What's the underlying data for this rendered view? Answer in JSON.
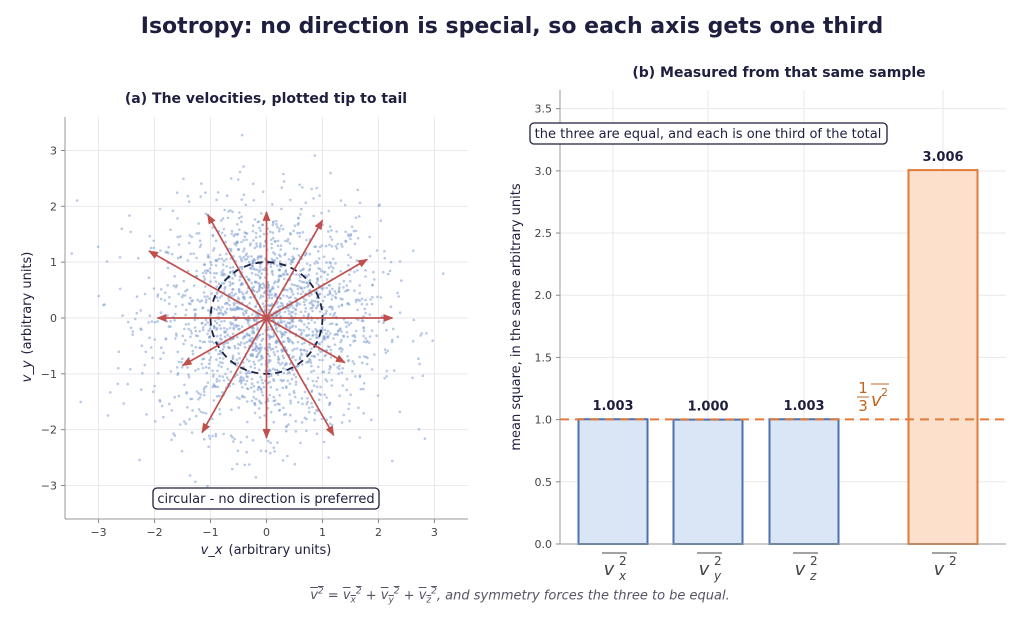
{
  "title": "Isotropy: no direction is special, so each axis gets one third",
  "caption_tail": ", and symmetry forces the three to be equal.",
  "colors": {
    "scatter": "#7c9ccf",
    "arrow": "#c0504d",
    "circle": "#1e1e3f",
    "bar_blue_fill": "#dae6f5",
    "bar_blue_edge": "#4a72b0",
    "bar_orange_fill": "#fde0cc",
    "bar_orange_edge": "#e07b39",
    "text": "#1e1e3f",
    "grid": "#e9e9ee"
  },
  "chart_data": [
    {
      "type": "scatter",
      "title": "(a)  The velocities, plotted tip to tail",
      "xlabel": "(arbitrary units)",
      "xlabel_symbol": "v_x",
      "ylabel": "(arbitrary units)",
      "ylabel_symbol": "v_y",
      "xlim": [
        -3.6,
        3.6
      ],
      "ylim": [
        -3.6,
        3.6
      ],
      "xticks": [
        -3,
        -2,
        -1,
        0,
        1,
        2,
        3
      ],
      "yticks": [
        -3,
        -2,
        -1,
        0,
        1,
        2,
        3
      ],
      "tick_labels": [
        "−3",
        "−2",
        "−1",
        "0",
        "1",
        "2",
        "3"
      ],
      "grid": true,
      "points": {
        "count": 2000,
        "distribution": "isotropic gaussian",
        "std": 1.0
      },
      "reference_circle": {
        "radius": 1.0,
        "style": "dashed"
      },
      "arrows": [
        {
          "x": 2.25,
          "y": 0.0
        },
        {
          "x": 1.8,
          "y": 1.05
        },
        {
          "x": 1.0,
          "y": 1.75
        },
        {
          "x": 0.0,
          "y": 1.9
        },
        {
          "x": -1.05,
          "y": 1.85
        },
        {
          "x": -2.1,
          "y": 1.2
        },
        {
          "x": -1.95,
          "y": 0.0
        },
        {
          "x": -1.5,
          "y": -0.85
        },
        {
          "x": -1.15,
          "y": -2.05
        },
        {
          "x": 0.0,
          "y": -2.15
        },
        {
          "x": 1.2,
          "y": -2.1
        },
        {
          "x": 1.4,
          "y": -0.8
        }
      ],
      "annotation": "circular - no direction is preferred"
    },
    {
      "type": "bar",
      "title": "(b)  Measured from that same sample",
      "ylabel": "mean square, in the same arbitrary units",
      "categories": [
        "vx2",
        "vy2",
        "vz2",
        "v2"
      ],
      "category_labels": [
        "v",
        "v",
        "v",
        "v"
      ],
      "category_subscripts": [
        "x",
        "y",
        "z",
        ""
      ],
      "values": [
        1.003,
        1.0,
        1.003,
        3.006
      ],
      "value_labels": [
        "1.003",
        "1.000",
        "1.003",
        "3.006"
      ],
      "ylim": [
        0,
        3.65
      ],
      "yticks": [
        0.0,
        0.5,
        1.0,
        1.5,
        2.0,
        2.5,
        3.0,
        3.5
      ],
      "ytick_labels": [
        "0.0",
        "0.5",
        "1.0",
        "1.5",
        "2.0",
        "2.5",
        "3.0",
        "3.5"
      ],
      "reference_line": {
        "value": 1.002,
        "label_num": "1",
        "label_den": "3",
        "label_tail": "v"
      },
      "annotation": "the three are equal, and each is one third of the total",
      "grid": true
    }
  ]
}
